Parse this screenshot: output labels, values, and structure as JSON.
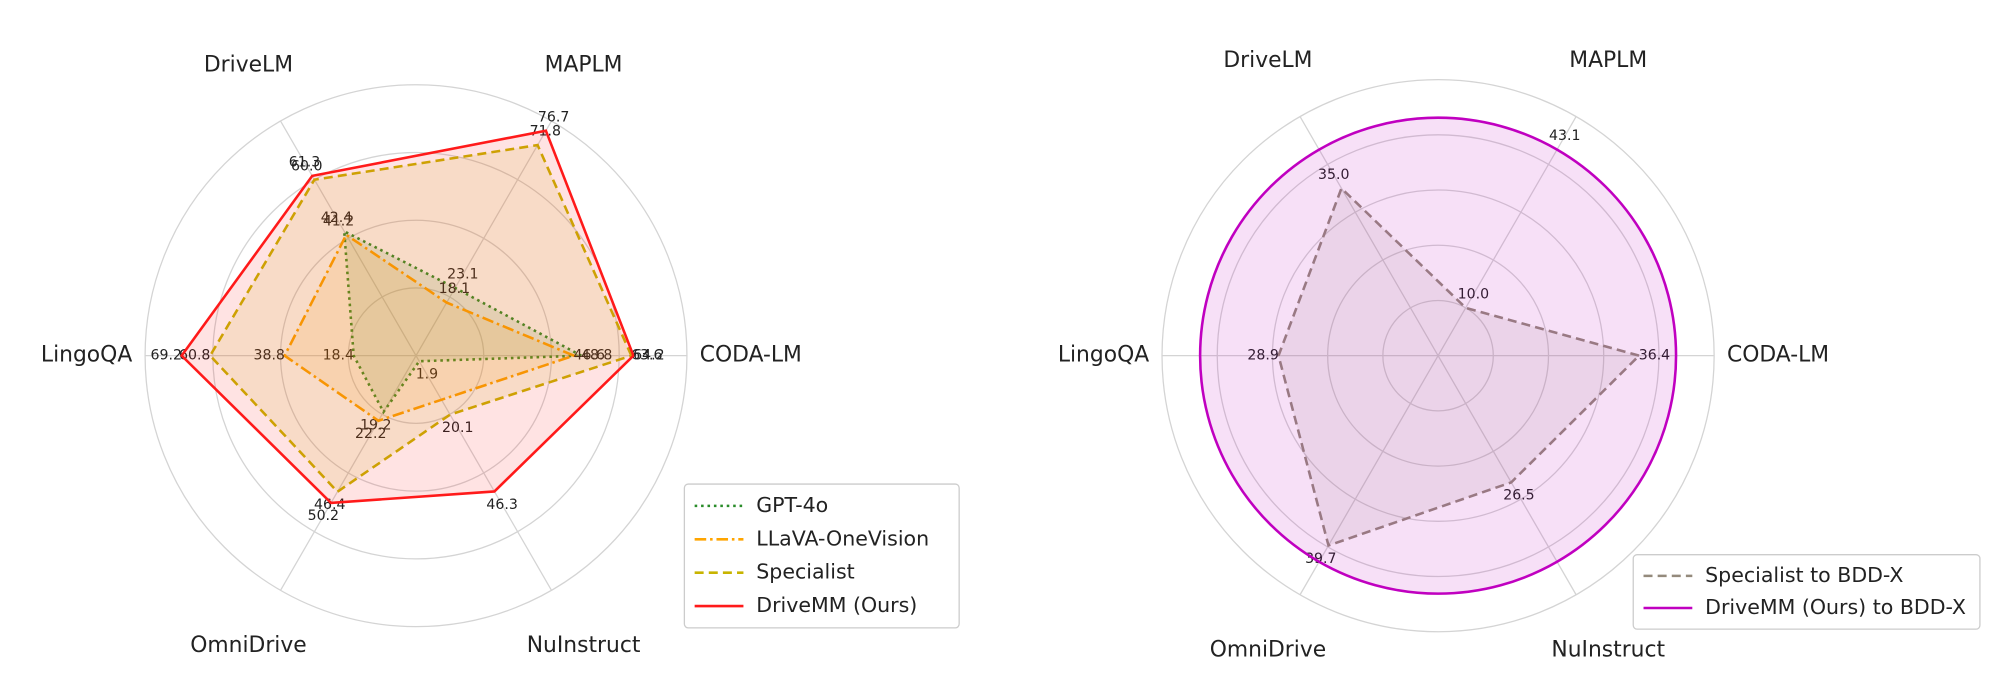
{
  "chart_data": [
    {
      "type": "radar",
      "axes": [
        "CODA-LM",
        "MAPLM",
        "DriveLM",
        "LingoQA",
        "OmniDrive",
        "NuInstruct"
      ],
      "rlim": [
        0,
        80
      ],
      "rticks": [
        20,
        40,
        60,
        80
      ],
      "grid": true,
      "legend": "lower right",
      "series": [
        {
          "name": "GPT-4o",
          "color": "#2a8c2a",
          "style": "dotted",
          "values": [
            48.8,
            23.1,
            42.4,
            18.4,
            19.2,
            1.9
          ]
        },
        {
          "name": "LLaVA-OneVision",
          "color": "#ffa500",
          "style": "dashdot",
          "values": [
            46.6,
            18.1,
            41.2,
            38.8,
            22.2,
            null
          ]
        },
        {
          "name": "Specialist",
          "color": "#c8b400",
          "style": "dashed",
          "values": [
            63.6,
            71.8,
            60.0,
            60.8,
            46.4,
            20.1
          ],
          "value_labels": [
            "63.6",
            "71.8",
            "60.0",
            "60.8",
            "46.4",
            "20.1"
          ]
        },
        {
          "name": "DriveMM (Ours)",
          "color": "#ff1a1a",
          "style": "solid",
          "values": [
            64.2,
            76.7,
            61.3,
            69.2,
            50.2,
            46.3
          ]
        }
      ]
    },
    {
      "type": "radar",
      "axes": [
        "CODA-LM",
        "MAPLM",
        "DriveLM",
        "LingoQA",
        "OmniDrive",
        "NuInstruct"
      ],
      "rlim": [
        0,
        50
      ],
      "rticks": [
        10,
        20,
        30,
        40,
        50
      ],
      "grid": true,
      "legend": "lower right",
      "series": [
        {
          "name": "Specialist to BDD-X",
          "color": "#948a7c",
          "style": "dashed",
          "values": [
            36.4,
            10.0,
            35.0,
            28.9,
            39.7,
            26.5
          ],
          "value_labels": [
            "36.4",
            "10.0",
            "35.0",
            "28.9",
            "39.7",
            "26.5"
          ]
        },
        {
          "name": "DriveMM (Ours) to BDD-X",
          "color": "#c000c0",
          "style": "solid",
          "values": [
            43.1,
            43.1,
            43.1,
            43.1,
            43.1,
            43.1
          ],
          "value_labels": [
            null,
            "43.1",
            null,
            null,
            null,
            null
          ]
        }
      ]
    }
  ]
}
